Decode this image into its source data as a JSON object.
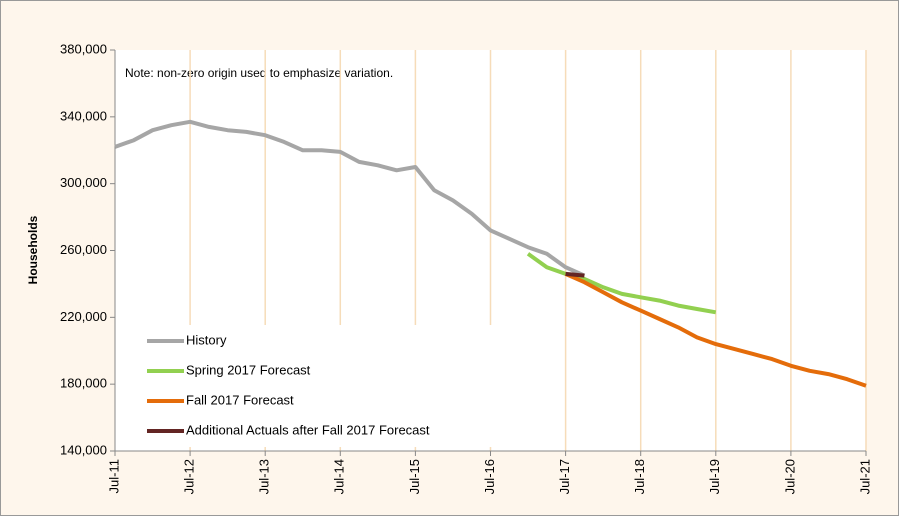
{
  "chart_data": {
    "type": "line",
    "ylabel": "Households",
    "annotation": "Note: non-zero origin used to emphasize variation.",
    "categories": [
      "Jul-11",
      null,
      null,
      null,
      "Jul-12",
      null,
      null,
      null,
      "Jul-13",
      null,
      null,
      null,
      "Jul-14",
      null,
      null,
      null,
      "Jul-15",
      null,
      null,
      null,
      "Jul-16",
      null,
      null,
      null,
      "Jul-17",
      null,
      null,
      null,
      "Jul-18",
      null,
      null,
      null,
      "Jul-19",
      null,
      null,
      null,
      "Jul-20",
      null,
      null,
      null,
      "Jul-21"
    ],
    "series": [
      {
        "name": "History",
        "color": "#a6a6a6",
        "values": [
          322000,
          326000,
          332000,
          335000,
          337000,
          334000,
          332000,
          331000,
          329000,
          325000,
          320000,
          320000,
          319000,
          313000,
          311000,
          308000,
          310000,
          296000,
          290000,
          282000,
          272000,
          267000,
          262000,
          258000,
          250000,
          245000,
          null,
          null,
          null,
          null,
          null,
          null,
          null,
          null,
          null,
          null,
          null,
          null,
          null,
          null,
          null
        ]
      },
      {
        "name": "Spring 2017 Forecast",
        "color": "#92d050",
        "values": [
          null,
          null,
          null,
          null,
          null,
          null,
          null,
          null,
          null,
          null,
          null,
          null,
          null,
          null,
          null,
          null,
          null,
          null,
          null,
          null,
          null,
          null,
          258000,
          250000,
          246000,
          243000,
          238000,
          234000,
          232000,
          230000,
          227000,
          225000,
          223000,
          null,
          null,
          null,
          null,
          null,
          null,
          null,
          null
        ]
      },
      {
        "name": "Fall 2017 Forecast",
        "color": "#e46c0a",
        "values": [
          null,
          null,
          null,
          null,
          null,
          null,
          null,
          null,
          null,
          null,
          null,
          null,
          null,
          null,
          null,
          null,
          null,
          null,
          null,
          null,
          null,
          null,
          null,
          null,
          246000,
          241000,
          235000,
          229000,
          224000,
          219000,
          214000,
          208000,
          204000,
          201000,
          198000,
          195000,
          191000,
          188000,
          186000,
          183000,
          179000
        ]
      },
      {
        "name": "Additional Actuals after Fall 2017 Forecast",
        "color": "#632523",
        "values": [
          null,
          null,
          null,
          null,
          null,
          null,
          null,
          null,
          null,
          null,
          null,
          null,
          null,
          null,
          null,
          null,
          null,
          null,
          null,
          null,
          null,
          null,
          null,
          null,
          246000,
          245000,
          null,
          null,
          null,
          null,
          null,
          null,
          null,
          null,
          null,
          null,
          null,
          null,
          null,
          null,
          null
        ]
      }
    ],
    "ylim": [
      140000,
      380000
    ],
    "yticks": [
      {
        "value": 140000,
        "label": "140,000"
      },
      {
        "value": 180000,
        "label": "180,000"
      },
      {
        "value": 220000,
        "label": "220,000"
      },
      {
        "value": 260000,
        "label": "260,000"
      },
      {
        "value": 300000,
        "label": "300,000"
      },
      {
        "value": 340000,
        "label": "340,000"
      },
      {
        "value": 380000,
        "label": "380,000"
      }
    ],
    "xgrid": true
  }
}
